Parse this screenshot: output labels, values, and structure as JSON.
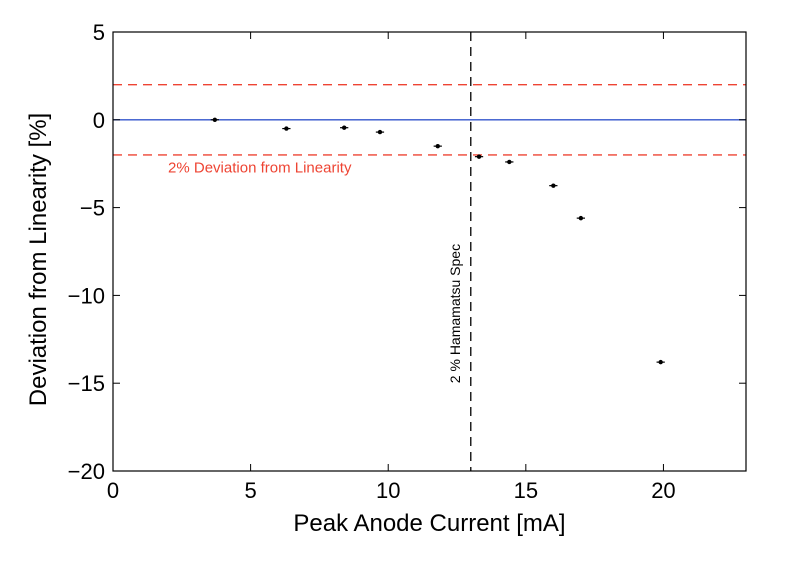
{
  "chart_data": {
    "type": "scatter",
    "title": "",
    "xlabel": "Peak Anode Current [mA]",
    "ylabel": "Deviation from Linearity [%]",
    "xlim": [
      0,
      23
    ],
    "ylim": [
      -20,
      5
    ],
    "x_ticks": [
      0,
      5,
      10,
      15,
      20
    ],
    "y_ticks": [
      5,
      0,
      -5,
      -10,
      -15,
      -20
    ],
    "grid": false,
    "series": [
      {
        "marker_color": "#000000",
        "points": [
          {
            "x": 3.7,
            "y": 0.0,
            "xerr": 0.15
          },
          {
            "x": 6.3,
            "y": -0.5,
            "xerr": 0.15
          },
          {
            "x": 8.4,
            "y": -0.45,
            "xerr": 0.15
          },
          {
            "x": 9.7,
            "y": -0.7,
            "xerr": 0.15
          },
          {
            "x": 11.8,
            "y": -1.5,
            "xerr": 0.15
          },
          {
            "x": 13.3,
            "y": -2.1,
            "xerr": 0.15
          },
          {
            "x": 14.4,
            "y": -2.4,
            "xerr": 0.15
          },
          {
            "x": 16.0,
            "y": -3.75,
            "xerr": 0.15
          },
          {
            "x": 17.0,
            "y": -5.6,
            "xerr": 0.15
          },
          {
            "x": 19.9,
            "y": -13.8,
            "xerr": 0.15
          }
        ]
      }
    ],
    "reference_lines": [
      {
        "orientation": "horizontal",
        "value": 0,
        "style": "solid",
        "color": "#3355cc"
      },
      {
        "orientation": "horizontal",
        "value": 2,
        "style": "dashed",
        "color": "#ee4433"
      },
      {
        "orientation": "horizontal",
        "value": -2,
        "style": "dashed",
        "color": "#ee4433"
      },
      {
        "orientation": "vertical",
        "value": 13,
        "style": "dashed",
        "color": "#000000"
      }
    ],
    "annotations": [
      {
        "text": "2% Deviation from Linearity",
        "x": 2.0,
        "y": -3.0,
        "color": "#ee4433",
        "rotation": 0
      },
      {
        "text": "2 % Hamamatsu Spec",
        "x": 12.6,
        "y": -15.0,
        "color": "#000000",
        "rotation": -90
      }
    ]
  }
}
